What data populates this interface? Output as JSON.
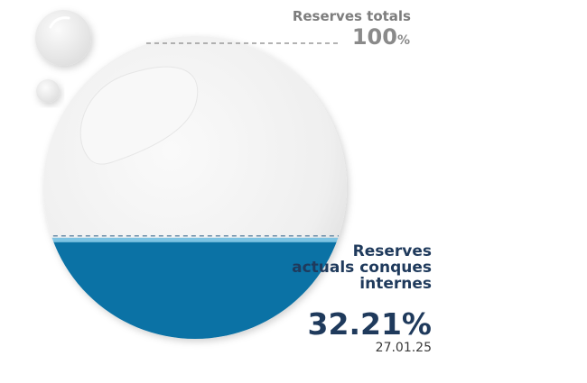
{
  "chart_data": {
    "type": "gauge",
    "total": {
      "label": "Reserves totals",
      "value": "100",
      "unit": "%"
    },
    "current": {
      "label": "Reserves actuals conques internes",
      "value": 32.21,
      "display": "32.21%",
      "date": "27.01.25"
    },
    "colors": {
      "water": "#0b72a5",
      "surface": "#7ec3e2",
      "sphere": "#f1f1f1",
      "total_label": "#7d7d7d",
      "current_label": "#1f3a5c"
    }
  }
}
